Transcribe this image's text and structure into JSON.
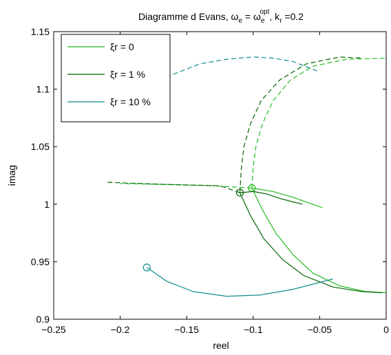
{
  "chart_data": {
    "type": "line",
    "title": {
      "main": "Diagramme d Evans, ω",
      "sub1": "e",
      "eq": " = ω",
      "sub2": "e",
      "sup2": "opt",
      "mid": ", k",
      "sub3": "r",
      "tail": " =0.2"
    },
    "xlabel": "reel",
    "ylabel": "imag",
    "xlim": [
      -0.25,
      0
    ],
    "ylim": [
      0.9,
      1.15
    ],
    "xticks": [
      "−0.25",
      "−0.2",
      "−0.15",
      "−0.1",
      "−0.05",
      "0"
    ],
    "yticks": [
      "0.9",
      "0.95",
      "1",
      "1.05",
      "1.1",
      "1.15"
    ],
    "legend_position": "top-left",
    "series": [
      {
        "name": "ξr = 0",
        "color": "#22bb22",
        "solid": [
          [
            [
              -0.101,
              1.014
            ],
            [
              -0.085,
              1.011
            ],
            [
              -0.07,
              1.006
            ],
            [
              -0.058,
              1.001
            ],
            [
              -0.048,
              0.997
            ]
          ],
          [
            [
              -0.101,
              1.014
            ],
            [
              -0.093,
              0.995
            ],
            [
              -0.083,
              0.975
            ],
            [
              -0.07,
              0.956
            ],
            [
              -0.055,
              0.94
            ],
            [
              -0.035,
              0.929
            ],
            [
              -0.015,
              0.924
            ],
            [
              0,
              0.923
            ]
          ]
        ],
        "dashed": [
          [
            [
              -0.101,
              1.014
            ],
            [
              -0.1,
              1.032
            ],
            [
              -0.098,
              1.05
            ],
            [
              -0.093,
              1.07
            ],
            [
              -0.085,
              1.09
            ],
            [
              -0.072,
              1.108
            ],
            [
              -0.055,
              1.12
            ],
            [
              -0.03,
              1.126
            ],
            [
              0,
              1.127
            ]
          ],
          [
            [
              -0.101,
              1.014
            ],
            [
              -0.13,
              1.016
            ],
            [
              -0.16,
              1.017
            ],
            [
              -0.2,
              1.018
            ]
          ]
        ],
        "markers": [
          [
            -0.101,
            1.014
          ]
        ]
      },
      {
        "name": "ξr = 1 %",
        "color": "#006400",
        "solid": [
          [
            [
              -0.11,
              1.01
            ],
            [
              -0.1,
              1.011
            ],
            [
              -0.09,
              1.009
            ],
            [
              -0.08,
              1.005
            ],
            [
              -0.07,
              1.002
            ],
            [
              -0.063,
              1.0
            ]
          ],
          [
            [
              -0.11,
              1.01
            ],
            [
              -0.102,
              0.99
            ],
            [
              -0.092,
              0.97
            ],
            [
              -0.078,
              0.952
            ],
            [
              -0.062,
              0.938
            ],
            [
              -0.04,
              0.928
            ],
            [
              -0.018,
              0.924
            ],
            [
              -0.003,
              0.923
            ]
          ]
        ],
        "dashed": [
          [
            [
              -0.11,
              1.01
            ],
            [
              -0.109,
              1.03
            ],
            [
              -0.107,
              1.05
            ],
            [
              -0.102,
              1.07
            ],
            [
              -0.094,
              1.09
            ],
            [
              -0.08,
              1.108
            ],
            [
              -0.06,
              1.122
            ],
            [
              -0.035,
              1.128
            ],
            [
              -0.018,
              1.127
            ]
          ],
          [
            [
              -0.11,
              1.01
            ],
            [
              -0.125,
              1.016
            ],
            [
              -0.16,
              1.017
            ],
            [
              -0.21,
              1.019
            ]
          ]
        ],
        "markers": [
          [
            -0.11,
            1.01
          ]
        ]
      },
      {
        "name": "ξr = 10 %",
        "color": "#128c8c",
        "solid": [
          [
            [
              -0.18,
              0.945
            ],
            [
              -0.165,
              0.933
            ],
            [
              -0.145,
              0.924
            ],
            [
              -0.12,
              0.92
            ],
            [
              -0.095,
              0.921
            ],
            [
              -0.07,
              0.926
            ],
            [
              -0.05,
              0.932
            ],
            [
              -0.04,
              0.935
            ]
          ]
        ],
        "dashed": [
          [
            [
              -0.18,
              1.1
            ],
            [
              -0.16,
              1.113
            ],
            [
              -0.14,
              1.122
            ],
            [
              -0.12,
              1.126
            ],
            [
              -0.1,
              1.128
            ],
            [
              -0.085,
              1.127
            ],
            [
              -0.07,
              1.124
            ],
            [
              -0.05,
              1.115
            ]
          ]
        ],
        "markers": [
          [
            -0.18,
            0.945
          ]
        ]
      }
    ]
  }
}
